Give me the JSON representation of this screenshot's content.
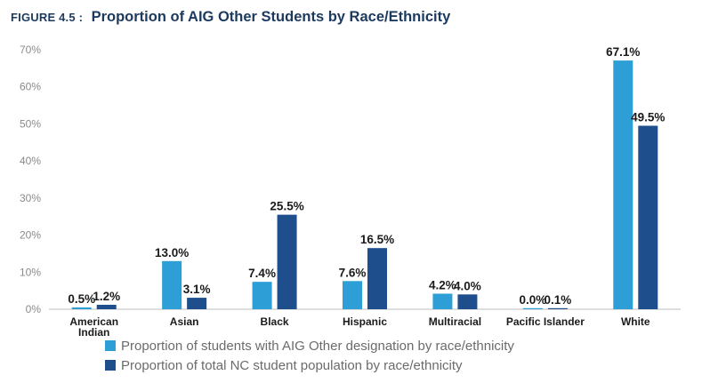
{
  "figure": {
    "label": "FIGURE 4.5 :",
    "title": "Proportion of AIG Other Students by Race/Ethnicity"
  },
  "chart_data": {
    "type": "bar",
    "title": "Proportion of AIG Other Students by Race/Ethnicity",
    "xlabel": "",
    "ylabel": "",
    "ylim": [
      0,
      70
    ],
    "yticks": [
      "0%",
      "10%",
      "20%",
      "30%",
      "40%",
      "50%",
      "60%",
      "70%"
    ],
    "categories": [
      [
        "American",
        "Indian"
      ],
      [
        "Asian"
      ],
      [
        "Black"
      ],
      [
        "Hispanic"
      ],
      [
        "Multiracial"
      ],
      [
        "Pacific Islander"
      ],
      [
        "White"
      ]
    ],
    "series": [
      {
        "name": "Proportion of students with AIG Other designation by race/ethnicity",
        "color": "#2e9fd6",
        "values": [
          0.5,
          13.0,
          7.4,
          7.6,
          4.2,
          0.0,
          67.1
        ],
        "labels": [
          "0.5%",
          "13.0%",
          "7.4%",
          "7.6%",
          "4.2%",
          "0.0%",
          "67.1%"
        ]
      },
      {
        "name": "Proportion of total NC student population by race/ethnicity",
        "color": "#1f4e8c",
        "values": [
          1.2,
          3.1,
          25.5,
          16.5,
          4.0,
          0.1,
          49.5
        ],
        "labels": [
          "1.2%",
          "3.1%",
          "25.5%",
          "16.5%",
          "4.0%",
          "0.1%",
          "49.5%"
        ]
      }
    ],
    "legend_position": "bottom-left"
  }
}
